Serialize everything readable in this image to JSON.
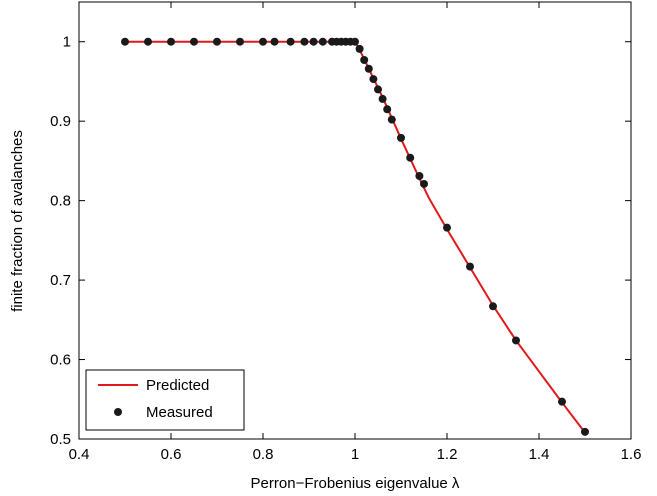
{
  "chart_data": {
    "type": "line",
    "title": "",
    "xlabel": "Perron−Frobenius eigenvalue λ",
    "ylabel": "finite fraction of avalanches",
    "xlim": [
      0.4,
      1.6
    ],
    "ylim": [
      0.5,
      1.05
    ],
    "xticks": [
      0.4,
      0.6,
      0.8,
      1.0,
      1.2,
      1.4,
      1.6
    ],
    "xtick_labels": [
      "0.4",
      "0.6",
      "0.8",
      "1",
      "1.2",
      "1.4",
      "1.6"
    ],
    "yticks": [
      0.5,
      0.6,
      0.7,
      0.8,
      0.9,
      1.0
    ],
    "ytick_labels": [
      "0.5",
      "0.6",
      "0.7",
      "0.8",
      "0.9",
      "1"
    ],
    "grid": false,
    "legend_position": "bottom-left",
    "series": [
      {
        "name": "Predicted",
        "style": "line",
        "color": "#e0181b",
        "x": [
          0.5,
          0.6,
          0.7,
          0.8,
          0.9,
          1.0,
          1.01,
          1.02,
          1.03,
          1.04,
          1.05,
          1.06,
          1.07,
          1.08,
          1.1,
          1.12,
          1.14,
          1.16,
          1.2,
          1.25,
          1.3,
          1.35,
          1.4,
          1.45,
          1.5
        ],
        "y": [
          1.0,
          1.0,
          1.0,
          1.0,
          1.0,
          1.0,
          0.99,
          0.978,
          0.966,
          0.954,
          0.942,
          0.93,
          0.917,
          0.904,
          0.878,
          0.853,
          0.828,
          0.804,
          0.764,
          0.716,
          0.668,
          0.624,
          0.585,
          0.546,
          0.508
        ]
      },
      {
        "name": "Measured",
        "style": "markers",
        "color": "#1a1a1a",
        "x": [
          0.5,
          0.55,
          0.6,
          0.65,
          0.7,
          0.75,
          0.8,
          0.825,
          0.86,
          0.89,
          0.91,
          0.93,
          0.95,
          0.96,
          0.97,
          0.98,
          0.99,
          1.0,
          1.01,
          1.02,
          1.03,
          1.04,
          1.05,
          1.06,
          1.07,
          1.08,
          1.1,
          1.12,
          1.14,
          1.15,
          1.2,
          1.25,
          1.3,
          1.35,
          1.45,
          1.5
        ],
        "y": [
          1.0,
          1.0,
          1.0,
          1.0,
          1.0,
          1.0,
          1.0,
          1.0,
          1.0,
          1.0,
          1.0,
          1.0,
          1.0,
          1.0,
          1.0,
          1.0,
          1.0,
          1.0,
          0.991,
          0.977,
          0.966,
          0.953,
          0.94,
          0.928,
          0.915,
          0.902,
          0.879,
          0.854,
          0.831,
          0.821,
          0.766,
          0.717,
          0.667,
          0.624,
          0.547,
          0.509
        ]
      }
    ]
  }
}
